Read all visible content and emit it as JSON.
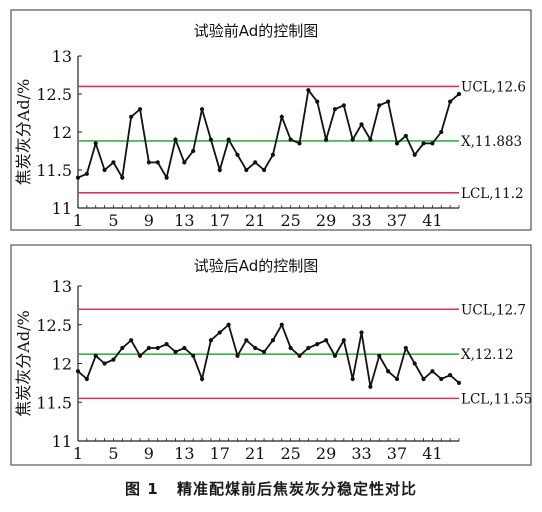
{
  "figure": {
    "caption_num": "图 1",
    "caption_text": "精准配煤前后焦炭灰分稳定性对比"
  },
  "chart_data": [
    {
      "type": "line",
      "title": "试验前Ad的控制图",
      "ylabel": "焦炭灰分Ad/%",
      "xlabel": "",
      "ylim": [
        11,
        13
      ],
      "yticks": [
        "11",
        "11.5",
        "12",
        "12.5",
        "13"
      ],
      "x": [
        1,
        2,
        3,
        4,
        5,
        6,
        7,
        8,
        9,
        10,
        11,
        12,
        13,
        14,
        15,
        16,
        17,
        18,
        19,
        20,
        21,
        22,
        23,
        24,
        25,
        26,
        27,
        28,
        29,
        30,
        31,
        32,
        33,
        34,
        35,
        36,
        37,
        38,
        39,
        40,
        41,
        42,
        43,
        44
      ],
      "xticks": [
        "1",
        "5",
        "9",
        "13",
        "17",
        "21",
        "25",
        "29",
        "33",
        "37",
        "41"
      ],
      "series": [
        {
          "values": [
            11.4,
            11.45,
            11.85,
            11.5,
            11.6,
            11.4,
            12.2,
            12.3,
            11.6,
            11.6,
            11.4,
            11.9,
            11.6,
            11.75,
            12.3,
            11.9,
            11.5,
            11.9,
            11.7,
            11.5,
            11.6,
            11.5,
            11.7,
            12.2,
            11.9,
            11.85,
            12.55,
            12.4,
            11.9,
            12.3,
            12.35,
            11.9,
            12.1,
            11.9,
            12.35,
            12.4,
            11.85,
            11.95,
            11.7,
            11.85,
            11.85,
            12.0,
            12.4,
            12.5
          ]
        }
      ],
      "limits": [
        {
          "label": "UCL,12.6",
          "value": 12.6,
          "color": "#d6336c"
        },
        {
          "label": "X,11.883",
          "value": 11.883,
          "color": "#3cb043"
        },
        {
          "label": "LCL,11.2",
          "value": 11.2,
          "color": "#d6336c"
        }
      ],
      "line_color": "#111111",
      "grid": false
    },
    {
      "type": "line",
      "title": "试验后Ad的控制图",
      "ylabel": "焦炭灰分Ad/%",
      "xlabel": "",
      "ylim": [
        11,
        13
      ],
      "yticks": [
        "11",
        "11.5",
        "12",
        "12.5",
        "13"
      ],
      "x": [
        1,
        2,
        3,
        4,
        5,
        6,
        7,
        8,
        9,
        10,
        11,
        12,
        13,
        14,
        15,
        16,
        17,
        18,
        19,
        20,
        21,
        22,
        23,
        24,
        25,
        26,
        27,
        28,
        29,
        30,
        31,
        32,
        33,
        34,
        35,
        36,
        37,
        38,
        39,
        40,
        41,
        42,
        43,
        44
      ],
      "xticks": [
        "1",
        "5",
        "9",
        "13",
        "17",
        "21",
        "25",
        "29",
        "33",
        "37",
        "41"
      ],
      "series": [
        {
          "values": [
            11.9,
            11.8,
            12.1,
            12.0,
            12.05,
            12.2,
            12.3,
            12.1,
            12.2,
            12.2,
            12.25,
            12.15,
            12.2,
            12.1,
            11.8,
            12.3,
            12.4,
            12.5,
            12.1,
            12.3,
            12.2,
            12.15,
            12.3,
            12.5,
            12.2,
            12.1,
            12.2,
            12.25,
            12.3,
            12.1,
            12.3,
            11.8,
            12.4,
            11.7,
            12.1,
            11.9,
            11.8,
            12.2,
            12.0,
            11.8,
            11.9,
            11.8,
            11.85,
            11.75
          ]
        }
      ],
      "limits": [
        {
          "label": "UCL,12.7",
          "value": 12.7,
          "color": "#d6336c"
        },
        {
          "label": "X,12.12",
          "value": 12.12,
          "color": "#3cb043"
        },
        {
          "label": "LCL,11.55",
          "value": 11.55,
          "color": "#d6336c"
        }
      ],
      "line_color": "#111111",
      "grid": false
    }
  ]
}
